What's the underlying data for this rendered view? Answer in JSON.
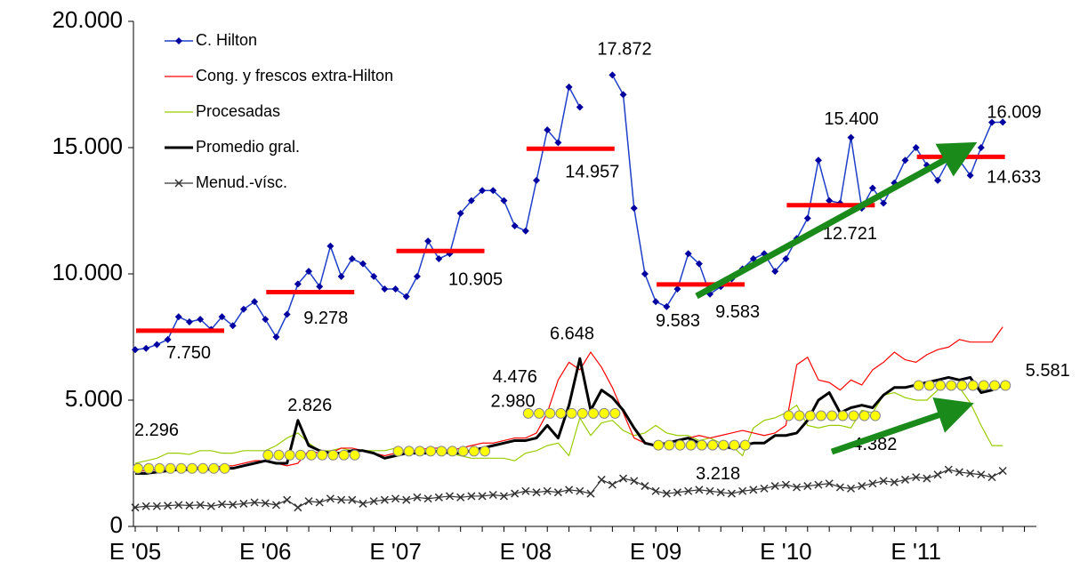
{
  "chart_data": {
    "type": "line",
    "categories": [
      "E '05",
      null,
      null,
      null,
      null,
      null,
      null,
      null,
      null,
      null,
      null,
      null,
      "E '06",
      null,
      null,
      null,
      null,
      null,
      null,
      null,
      null,
      null,
      null,
      null,
      "E '07",
      null,
      null,
      null,
      null,
      null,
      null,
      null,
      null,
      null,
      null,
      null,
      "E '08",
      null,
      null,
      null,
      null,
      null,
      null,
      null,
      null,
      null,
      null,
      null,
      "E '09",
      null,
      null,
      null,
      null,
      null,
      null,
      null,
      null,
      null,
      null,
      null,
      "E '10",
      null,
      null,
      null,
      null,
      null,
      null,
      null,
      null,
      null,
      null,
      null,
      "E '11",
      null,
      null,
      null,
      null,
      null,
      null,
      null,
      null,
      null,
      null,
      null
    ],
    "series": [
      {
        "name": "C. Hilton",
        "color": "#1f3fc8",
        "marker": "diamond",
        "values": [
          7000,
          7050,
          7200,
          7400,
          8300,
          8100,
          8200,
          7800,
          8300,
          7950,
          8600,
          8900,
          8200,
          7500,
          8400,
          9600,
          10100,
          9500,
          11100,
          9900,
          10600,
          10400,
          9900,
          9400,
          9400,
          9100,
          9900,
          11300,
          10600,
          10800,
          12400,
          12900,
          13300,
          13300,
          12900,
          11900,
          11700,
          13700,
          15700,
          15200,
          17400,
          16600,
          null,
          null,
          17872,
          17100,
          12600,
          10000,
          8900,
          8700,
          9400,
          10800,
          10400,
          9200,
          9500,
          9800,
          10200,
          10600,
          10800,
          10100,
          10600,
          11400,
          12200,
          14500,
          12900,
          12800,
          15400,
          12600,
          13400,
          12800,
          13600,
          14500,
          15000,
          14300,
          13700,
          14500,
          14500,
          13900,
          15000,
          16000,
          16009,
          null,
          null,
          null
        ]
      },
      {
        "name": "Cong. y frescos extra-Hilton",
        "color": "#ff0000",
        "marker": "none",
        "values": [
          2200,
          2200,
          2250,
          2300,
          2300,
          2350,
          2350,
          2300,
          2400,
          2400,
          2500,
          2600,
          2600,
          2500,
          2400,
          2500,
          3000,
          2900,
          2900,
          3100,
          3100,
          3000,
          2900,
          2800,
          2900,
          3000,
          3000,
          3100,
          3100,
          3000,
          3100,
          3200,
          3300,
          3300,
          3400,
          3500,
          3500,
          3700,
          4500,
          5800,
          6500,
          6200,
          6900,
          6300,
          5500,
          4500,
          3500,
          3300,
          3200,
          3300,
          3400,
          3500,
          3600,
          3500,
          3600,
          3700,
          3800,
          3700,
          3600,
          3700,
          4000,
          6400,
          6700,
          5800,
          5700,
          5400,
          5800,
          5600,
          6200,
          6500,
          6900,
          6600,
          6500,
          6800,
          7000,
          7100,
          7400,
          7300,
          7300,
          7300,
          7900,
          null,
          null,
          null
        ]
      },
      {
        "name": "Procesadas",
        "color": "#99cc00",
        "marker": "none",
        "values": [
          2500,
          2600,
          2700,
          2900,
          2900,
          2850,
          3000,
          3000,
          2900,
          2900,
          3000,
          3000,
          3000,
          3200,
          3500,
          3700,
          3300,
          3000,
          3000,
          3100,
          3000,
          3000,
          3000,
          3000,
          3100,
          3000,
          3000,
          3000,
          3000,
          2900,
          2800,
          2700,
          2700,
          2700,
          2700,
          2600,
          2900,
          3000,
          3200,
          3300,
          2800,
          4300,
          3600,
          4100,
          4200,
          3800,
          3600,
          3700,
          4000,
          3700,
          3600,
          3600,
          3400,
          3500,
          3300,
          3200,
          2800,
          3900,
          4200,
          4300,
          4500,
          4800,
          4000,
          3900,
          4000,
          4000,
          3900,
          4600,
          4500,
          5200,
          5300,
          5100,
          5000,
          5000,
          5400,
          5600,
          5500,
          4900,
          4000,
          3200,
          3200,
          null,
          null,
          null
        ]
      },
      {
        "name": "Promedio gral.",
        "color": "#000000",
        "marker": "none",
        "values": [
          2100,
          2100,
          2150,
          2200,
          2250,
          2250,
          2300,
          2250,
          2300,
          2300,
          2400,
          2500,
          2600,
          2500,
          2500,
          4200,
          3200,
          3000,
          2900,
          2900,
          3000,
          3000,
          2900,
          2700,
          2800,
          2900,
          2900,
          2900,
          3000,
          2900,
          2900,
          3000,
          3100,
          3200,
          3300,
          3400,
          3400,
          3500,
          4000,
          3500,
          4800,
          6648,
          4600,
          5400,
          5100,
          4600,
          3900,
          3300,
          3200,
          3300,
          3400,
          3500,
          3300,
          3200,
          3200,
          3100,
          3200,
          3300,
          3300,
          3600,
          3600,
          3700,
          4200,
          5000,
          5300,
          4500,
          4700,
          4800,
          4700,
          5200,
          5500,
          5500,
          5600,
          5700,
          5800,
          5900,
          5800,
          5900,
          5300,
          5400,
          5600,
          null,
          null,
          null
        ]
      },
      {
        "name": "Menud.-vísc.",
        "color": "#333333",
        "marker": "cross",
        "values": [
          750,
          800,
          800,
          820,
          850,
          830,
          850,
          800,
          880,
          860,
          900,
          950,
          920,
          850,
          1050,
          750,
          1000,
          950,
          1100,
          1050,
          1050,
          900,
          1000,
          1050,
          1100,
          1050,
          1150,
          1100,
          1150,
          1200,
          1150,
          1200,
          1200,
          1250,
          1200,
          1300,
          1400,
          1350,
          1400,
          1350,
          1450,
          1400,
          1300,
          1850,
          1650,
          1900,
          1800,
          1600,
          1400,
          1300,
          1350,
          1400,
          1450,
          1400,
          1350,
          1300,
          1400,
          1450,
          1500,
          1600,
          1650,
          1550,
          1600,
          1650,
          1700,
          1550,
          1500,
          1600,
          1700,
          1800,
          1750,
          1850,
          1950,
          1900,
          2050,
          2250,
          2150,
          2100,
          2050,
          1950,
          2200,
          null,
          null,
          null
        ]
      }
    ],
    "annual_avg_hilton": {
      "color": "#ff0000",
      "values": [
        7750,
        9278,
        10905,
        14957,
        9583,
        12721,
        14633
      ],
      "value_labels": [
        "7.750",
        "9.278",
        "10.905",
        "14.957",
        "9.583",
        "12.721",
        "14.633"
      ]
    },
    "annual_avg_promedio": {
      "color": "#ffff00",
      "values": [
        2296,
        2826,
        2980,
        4476,
        3218,
        4382,
        5581
      ],
      "value_labels": [
        "2.296",
        "2.826",
        "2.980",
        "4.476",
        "3.218",
        "4.382",
        "5.581"
      ]
    },
    "annotations": [
      {
        "label": "17.872",
        "value": 17872
      },
      {
        "label": "15.400",
        "value": 15400
      },
      {
        "label": "16.009",
        "value": 16009
      },
      {
        "label": "9.583",
        "value": 9583
      },
      {
        "label": "6.648",
        "value": 6648
      }
    ],
    "ylim": [
      0,
      20000
    ],
    "yticks": [
      0,
      {
        "value": 5000,
        "label": "5.000"
      },
      {
        "value": 10000,
        "label": "10.000"
      },
      {
        "value": 15000,
        "label": "15.000"
      },
      {
        "value": 20000,
        "label": "20.000"
      }
    ],
    "legend": "top-left",
    "grid": false
  }
}
